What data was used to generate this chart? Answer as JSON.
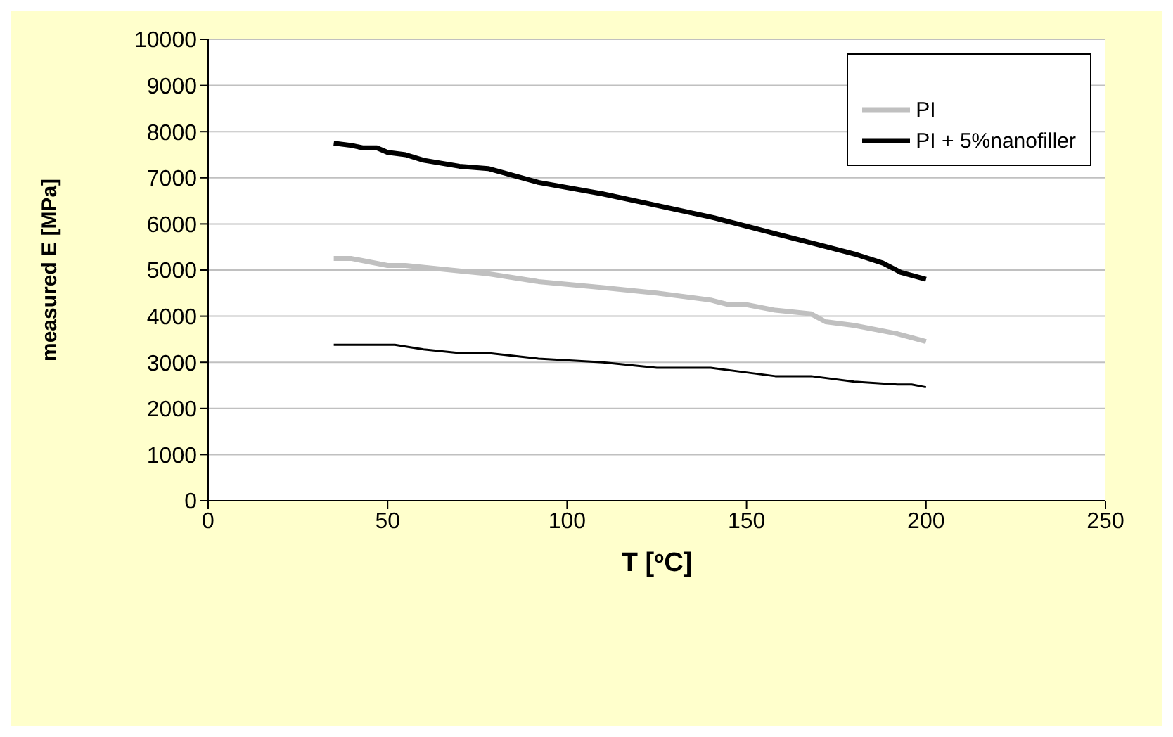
{
  "chart_data": {
    "type": "line",
    "xlabel": "T [$^{o}$C]",
    "ylabel": "measured E [MPa]",
    "xlim": [
      0,
      250
    ],
    "xticks": [
      0,
      50,
      100,
      150,
      200,
      250
    ],
    "ylim": [
      0,
      10000
    ],
    "yticks": [
      0,
      1000,
      2000,
      3000,
      4000,
      5000,
      6000,
      7000,
      8000,
      9000,
      10000
    ],
    "grid": "y",
    "legend": "top right",
    "marker": "none",
    "line_style": "solid",
    "series": [
      {
        "color": "#000000",
        "x": [
          35,
          45,
          52,
          60,
          70,
          78,
          92,
          110,
          125,
          140,
          150,
          158,
          168,
          180,
          192,
          196,
          200
        ],
        "values": [
          3380,
          3380,
          3380,
          3280,
          3200,
          3200,
          3080,
          3000,
          2880,
          2880,
          2780,
          2700,
          2700,
          2580,
          2520,
          2520,
          2460
        ]
      },
      {
        "name": "PI",
        "color": "#c0c0c0",
        "x": [
          35,
          40,
          50,
          55,
          70,
          78,
          92,
          110,
          125,
          140,
          145,
          150,
          158,
          168,
          172,
          180,
          192,
          200
        ],
        "values": [
          5250,
          5250,
          5100,
          5100,
          4980,
          4920,
          4750,
          4620,
          4500,
          4350,
          4250,
          4250,
          4130,
          4050,
          3880,
          3800,
          3620,
          3450
        ]
      },
      {
        "name": "PI + 5%nanofiller",
        "color": "#000000",
        "x": [
          35,
          40,
          43,
          47,
          50,
          55,
          60,
          70,
          78,
          92,
          110,
          125,
          140,
          145,
          150,
          160,
          170,
          180,
          188,
          193,
          200
        ],
        "values": [
          7750,
          7700,
          7650,
          7650,
          7550,
          7500,
          7380,
          7250,
          7200,
          6900,
          6650,
          6400,
          6150,
          6050,
          5950,
          5750,
          5550,
          5350,
          5150,
          4950,
          4800
        ]
      }
    ]
  }
}
